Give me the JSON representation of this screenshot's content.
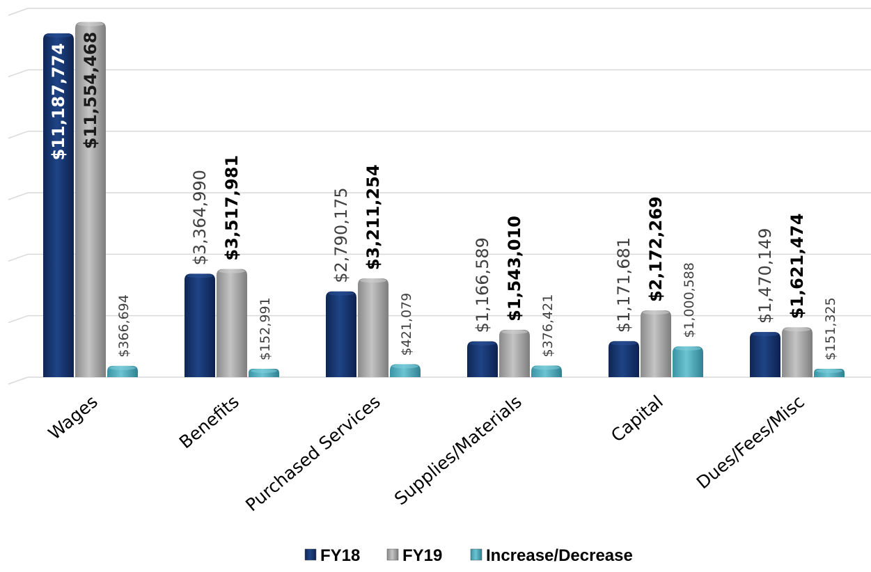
{
  "chart_data": {
    "type": "bar",
    "categories": [
      "Wages",
      "Benefits",
      "Purchased Services",
      "Supplies/Materials",
      "Capital",
      "Dues/Fees/Misc"
    ],
    "series": [
      {
        "name": "FY18",
        "color": "#1c3d7a",
        "values": [
          11187774,
          3364990,
          2790175,
          1166589,
          1171681,
          1470149
        ],
        "labels": [
          "$11,187,774",
          "$3,364,990",
          "$2,790,175",
          "$1,166,589",
          "$1,171,681",
          "$1,470,149"
        ]
      },
      {
        "name": "FY19",
        "color": "#a6a6a6",
        "values": [
          11554468,
          3517981,
          3211254,
          1543010,
          2172269,
          1621474
        ],
        "labels": [
          "$11,554,468",
          "$3,517,981",
          "$3,211,254",
          "$1,543,010",
          "$2,172,269",
          "$1,621,474"
        ]
      },
      {
        "name": "Increase/Decrease",
        "color": "#4aa8b8",
        "values": [
          366694,
          152991,
          421079,
          376421,
          1000588,
          151325
        ],
        "labels": [
          "$366,694",
          "$152,991",
          "$421,079",
          "$376,421",
          "$1,000,588",
          "$151,325"
        ]
      }
    ],
    "ylim": [
      0,
      12000000
    ],
    "grid": true,
    "legend": "bottom"
  }
}
